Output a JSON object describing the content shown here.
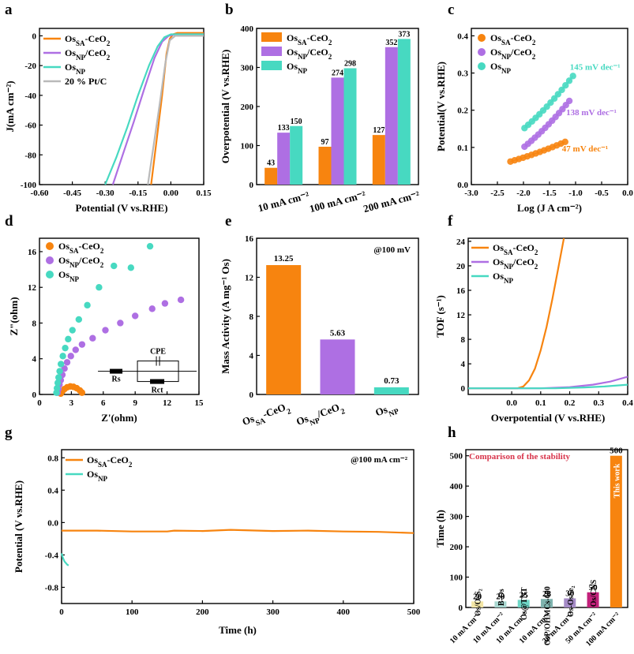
{
  "colors": {
    "orange": "#F7840F",
    "purple": "#AE6FE3",
    "teal": "#47D9C1",
    "gray": "#B9B9B9",
    "red": "#D8344B"
  },
  "panels": [
    {
      "name": "panel-a",
      "label": "a"
    },
    {
      "name": "panel-b",
      "label": "b"
    },
    {
      "name": "panel-c",
      "label": "c"
    },
    {
      "name": "panel-d",
      "label": "d"
    },
    {
      "name": "panel-e",
      "label": "e"
    },
    {
      "name": "panel-f",
      "label": "f"
    },
    {
      "name": "panel-g",
      "label": "g"
    },
    {
      "name": "panel-h",
      "label": "h"
    }
  ],
  "chart_data": [
    {
      "id": "a",
      "type": "line",
      "xlabel": "Potential  (V vs.RHE)",
      "ylabel": "J(mA cm⁻²)",
      "xlim": [
        -0.6,
        0.15
      ],
      "ylim": [
        -100,
        5
      ],
      "xticks": [
        "-0.60",
        "-0.45",
        "-0.30",
        "-0.15",
        "0.00",
        "0.15"
      ],
      "xtick_values": [
        -0.6,
        -0.45,
        -0.3,
        -0.15,
        0,
        0.15
      ],
      "yticks": [
        "0",
        "-20",
        "-40",
        "-60",
        "-80",
        "-100"
      ],
      "ytick_values": [
        0,
        -20,
        -40,
        -60,
        -80,
        -100
      ],
      "legend_position": "top-left",
      "series": [
        {
          "name": "OsSA-CeO2",
          "color": "#F7840F",
          "x": [
            -0.09,
            -0.065,
            -0.04,
            -0.02,
            -0.005,
            0.01,
            0.03,
            0.15
          ],
          "y": [
            -100,
            -70,
            -40,
            -12,
            -2,
            1,
            2,
            2
          ]
        },
        {
          "name": "OsNP/CeO2",
          "color": "#AE6FE3",
          "x": [
            -0.265,
            -0.22,
            -0.17,
            -0.12,
            -0.075,
            -0.04,
            -0.01,
            0.02,
            0.15
          ],
          "y": [
            -100,
            -80,
            -58,
            -35,
            -15,
            -4,
            0,
            1,
            1
          ]
        },
        {
          "name": "OsNP",
          "color": "#47D9C1",
          "x": [
            -0.3,
            -0.25,
            -0.2,
            -0.15,
            -0.1,
            -0.06,
            -0.03,
            0.0,
            0.15
          ],
          "y": [
            -100,
            -82,
            -62,
            -40,
            -20,
            -7,
            -1,
            1,
            1
          ]
        },
        {
          "name": "20 % Pt/C",
          "color": "#B9B9B9",
          "x": [
            -0.105,
            -0.08,
            -0.05,
            -0.025,
            -0.005,
            0.02,
            0.15
          ],
          "y": [
            -100,
            -75,
            -45,
            -18,
            -3,
            0,
            0
          ]
        }
      ]
    },
    {
      "id": "b",
      "type": "bar",
      "xlabel": "",
      "ylabel": "Overpotential (V vs.RHE)",
      "categories": [
        "10 mA cm⁻²",
        "100 mA cm⁻²",
        "200 mA cm⁻²"
      ],
      "ylim": [
        0,
        400
      ],
      "yticks": [
        "0",
        "100",
        "200",
        "300",
        "400"
      ],
      "ytick_values": [
        0,
        100,
        200,
        300,
        400
      ],
      "legend_position": "top-left",
      "series": [
        {
          "name": "OsSA-CeO2",
          "color": "#F7840F",
          "values": [
            43,
            97,
            127
          ],
          "labels": [
            "43",
            "97",
            "127"
          ]
        },
        {
          "name": "OsNP/CeO2",
          "color": "#AE6FE3",
          "values": [
            133,
            274,
            352
          ],
          "labels": [
            "133",
            "274",
            "352"
          ]
        },
        {
          "name": "OsNP",
          "color": "#47D9C1",
          "values": [
            150,
            298,
            373
          ],
          "labels": [
            "150",
            "298",
            "373"
          ]
        }
      ]
    },
    {
      "id": "c",
      "type": "scatter",
      "xlabel": "Log  (J A cm⁻²)",
      "ylabel": "Potential(V vs.RHE)",
      "xlim": [
        -3.0,
        0.0
      ],
      "ylim": [
        0.0,
        0.42
      ],
      "xticks": [
        "-3.0",
        "-2.5",
        "-2.0",
        "-1.5",
        "-1.0",
        "-0.5",
        "0.0"
      ],
      "xtick_values": [
        -3,
        -2.5,
        -2,
        -1.5,
        -1,
        -0.5,
        0
      ],
      "yticks": [
        "0.0",
        "0.1",
        "0.2",
        "0.3",
        "0.4"
      ],
      "ytick_values": [
        0,
        0.1,
        0.2,
        0.3,
        0.4
      ],
      "legend_position": "top-left",
      "series": [
        {
          "name": "OsSA-CeO2",
          "color": "#F7840F",
          "x_start": -2.25,
          "x_end": -1.2,
          "y_start": 0.062,
          "y_end": 0.115,
          "n": 14,
          "slope_label": "47 mV dec⁻¹"
        },
        {
          "name": "OsNP/CeO2",
          "color": "#AE6FE3",
          "x_start": -1.98,
          "x_end": -1.12,
          "y_start": 0.102,
          "y_end": 0.225,
          "n": 14,
          "slope_label": "138 mV dec⁻¹"
        },
        {
          "name": "OsNP",
          "color": "#47D9C1",
          "x_start": -1.98,
          "x_end": -1.05,
          "y_start": 0.152,
          "y_end": 0.292,
          "n": 14,
          "slope_label": "145 mV dec⁻¹"
        }
      ]
    },
    {
      "id": "d",
      "type": "scatter",
      "xlabel": "Z'(ohm)",
      "ylabel": "Z\"(ohm)",
      "xlim": [
        0,
        15
      ],
      "ylim": [
        0,
        17.5
      ],
      "xticks": [
        "0",
        "3",
        "6",
        "9",
        "12",
        "15"
      ],
      "xtick_values": [
        0,
        3,
        6,
        9,
        12,
        15
      ],
      "yticks": [
        "0",
        "4",
        "8",
        "12",
        "16"
      ],
      "ytick_values": [
        0,
        4,
        8,
        12,
        16
      ],
      "legend_position": "top-left",
      "inset_labels": {
        "cpe": "CPE",
        "rs": "Rs",
        "rct": "Rct"
      },
      "series": [
        {
          "name": "OsSA-CeO2",
          "color": "#F7840F",
          "x": [
            2.0,
            2.15,
            2.35,
            2.6,
            2.9,
            3.2,
            3.5,
            3.8,
            4.0
          ],
          "y": [
            0.1,
            0.35,
            0.6,
            0.8,
            0.9,
            0.85,
            0.7,
            0.45,
            0.2
          ]
        },
        {
          "name": "OsNP/CeO2",
          "color": "#AE6FE3",
          "x": [
            1.7,
            1.78,
            1.88,
            2.0,
            2.15,
            2.35,
            2.6,
            2.95,
            3.4,
            4.0,
            5.0,
            6.2,
            7.6,
            9.0,
            10.6,
            11.8,
            13.3
          ],
          "y": [
            0.2,
            0.6,
            1.1,
            1.6,
            2.2,
            2.9,
            3.6,
            4.3,
            5.0,
            5.6,
            6.3,
            7.2,
            8.0,
            8.8,
            9.6,
            10.2,
            10.6
          ]
        },
        {
          "name": "OsNP",
          "color": "#47D9C1",
          "x": [
            1.6,
            1.65,
            1.72,
            1.8,
            1.9,
            2.02,
            2.2,
            2.42,
            2.7,
            3.1,
            3.7,
            4.5,
            5.6,
            7.0,
            8.6,
            10.4
          ],
          "y": [
            0.2,
            0.7,
            1.3,
            1.9,
            2.6,
            3.4,
            4.3,
            5.2,
            6.2,
            7.2,
            8.4,
            10.0,
            12.0,
            14.4,
            14.2,
            16.6
          ]
        }
      ]
    },
    {
      "id": "e",
      "type": "bar",
      "xlabel": "",
      "ylabel": "Mass Activity (A mg⁻¹ Os)",
      "annotation": "@100 mV",
      "categories": [
        "OsSA-CeO2",
        "OsNP/CeO2",
        "OsNP"
      ],
      "ylim": [
        0,
        16
      ],
      "yticks": [
        "0",
        "4",
        "8",
        "12",
        "16"
      ],
      "ytick_values": [
        0,
        4,
        8,
        12,
        16
      ],
      "values": [
        13.25,
        5.63,
        0.73
      ],
      "labels": [
        "13.25",
        "5.63",
        "0.73"
      ],
      "colors": [
        "#F7840F",
        "#AE6FE3",
        "#47D9C1"
      ]
    },
    {
      "id": "f",
      "type": "line",
      "xlabel": "Overpotential (V vs.RHE)",
      "ylabel": "TOF (s⁻¹)",
      "xlim": [
        -0.15,
        0.4
      ],
      "ylim": [
        -1,
        24.5
      ],
      "xticks": [
        "0.0",
        "0.1",
        "0.2",
        "0.3",
        "0.4"
      ],
      "xtick_values": [
        0,
        0.1,
        0.2,
        0.3,
        0.4
      ],
      "yticks": [
        "0",
        "4",
        "8",
        "12",
        "16",
        "20",
        "24"
      ],
      "ytick_values": [
        0,
        4,
        8,
        12,
        16,
        20,
        24
      ],
      "legend_position": "top-left",
      "series": [
        {
          "name": "OsSA-CeO2",
          "color": "#F7840F",
          "x": [
            -0.15,
            0.02,
            0.04,
            0.06,
            0.08,
            0.1,
            0.12,
            0.14,
            0.16,
            0.18
          ],
          "y": [
            0,
            0,
            0.3,
            1.3,
            3.2,
            6.2,
            10.0,
            14.5,
            19.5,
            24.5
          ]
        },
        {
          "name": "OsNP/CeO2",
          "color": "#AE6FE3",
          "x": [
            -0.15,
            0.1,
            0.2,
            0.28,
            0.34,
            0.4
          ],
          "y": [
            0,
            0,
            0.2,
            0.6,
            1.1,
            1.9
          ]
        },
        {
          "name": "OsNP",
          "color": "#47D9C1",
          "x": [
            -0.15,
            0.15,
            0.25,
            0.32,
            0.4
          ],
          "y": [
            0,
            0,
            0.15,
            0.3,
            0.6
          ]
        }
      ]
    },
    {
      "id": "g",
      "type": "line",
      "xlabel": "Time (h)",
      "ylabel": "Potential (V vs.RHE)",
      "annotation": "@100 mA cm⁻²",
      "xlim": [
        0,
        500
      ],
      "ylim": [
        -1.0,
        0.9
      ],
      "xticks": [
        "0",
        "100",
        "200",
        "300",
        "400",
        "500"
      ],
      "xtick_values": [
        0,
        100,
        200,
        300,
        400,
        500
      ],
      "yticks": [
        "0.8",
        "0.4",
        "0.0",
        "-0.4",
        "-0.8"
      ],
      "ytick_values": [
        0.8,
        0.4,
        0,
        -0.4,
        -0.8
      ],
      "legend_position": "top-left",
      "series": [
        {
          "name": "OsSA-CeO2",
          "color": "#F7840F",
          "x": [
            0,
            50,
            100,
            150,
            160,
            200,
            240,
            300,
            350,
            400,
            450,
            500
          ],
          "y": [
            -0.1,
            -0.1,
            -0.11,
            -0.11,
            -0.1,
            -0.105,
            -0.09,
            -0.105,
            -0.1,
            -0.11,
            -0.115,
            -0.13
          ]
        },
        {
          "name": "OsNP",
          "color": "#47D9C1",
          "x": [
            0,
            2,
            4,
            6,
            8,
            10
          ],
          "y": [
            -0.38,
            -0.44,
            -0.48,
            -0.5,
            -0.52,
            -0.53
          ]
        }
      ]
    },
    {
      "id": "h",
      "type": "bar",
      "xlabel": "",
      "ylabel": "Time (h)",
      "title": "Comparison of the stability",
      "ylim": [
        0,
        520
      ],
      "yticks": [
        "0",
        "100",
        "200",
        "300",
        "400",
        "500"
      ],
      "ytick_values": [
        0,
        100,
        200,
        300,
        400,
        500
      ],
      "categories": [
        "10 mA cm⁻²",
        "10 mA cm⁻²",
        "10 mA cm⁻²",
        "10 mA cm⁻²",
        "20 mA cm⁻²",
        "50 mA cm⁻²",
        "100 mA cm⁻²"
      ],
      "bar_names": [
        "Os/OsS₂",
        "B-Os",
        "Os@TNT",
        "OsP/OHMCs-600",
        "Os-OsSe₂",
        "Os/CNS",
        "This work"
      ],
      "values": [
        20,
        20,
        25,
        28,
        30,
        50,
        500
      ],
      "labels": [
        "20",
        "20",
        "25",
        "28",
        "30",
        "50",
        "500"
      ],
      "colors": [
        "#F3E6A6",
        "#A9D7D0",
        "#6ED6C6",
        "#7FB3AE",
        "#A58BC6",
        "#C2207A",
        "#F7840F"
      ]
    }
  ]
}
